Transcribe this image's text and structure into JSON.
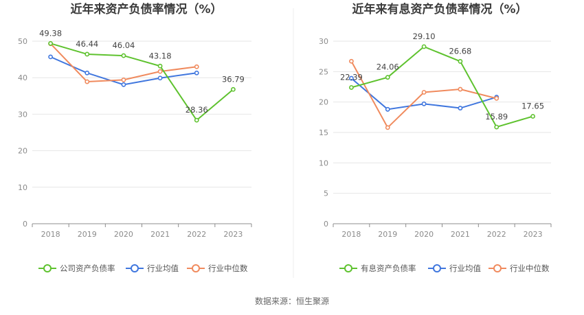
{
  "source": "数据来源：恒生聚源",
  "chart_data": [
    {
      "type": "line",
      "title": "近年来资产负债率情况（%）",
      "categories": [
        "2018",
        "2019",
        "2020",
        "2021",
        "2022",
        "2023"
      ],
      "ylim": [
        0,
        50
      ],
      "yticks": [
        0,
        10,
        20,
        30,
        40,
        50
      ],
      "grid": true,
      "legend_position": "bottom",
      "series": [
        {
          "name": "公司资产负债率",
          "color": "#5ec22e",
          "values": [
            49.38,
            46.44,
            46.04,
            43.18,
            28.36,
            36.79
          ],
          "labels": [
            "49.38",
            "46.44",
            "46.04",
            "43.18",
            "28.36",
            "36.79"
          ]
        },
        {
          "name": "行业均值",
          "color": "#3f76de",
          "values": [
            45.7,
            41.3,
            38.1,
            39.9,
            41.3,
            null
          ]
        },
        {
          "name": "行业中位数",
          "color": "#f08a5d",
          "values": [
            49.3,
            38.9,
            39.4,
            41.7,
            43.0,
            null
          ]
        }
      ]
    },
    {
      "type": "line",
      "title": "近年来有息资产负债率情况（%）",
      "categories": [
        "2018",
        "2019",
        "2020",
        "2021",
        "2022",
        "2023"
      ],
      "ylim": [
        0,
        30
      ],
      "yticks": [
        0,
        5,
        10,
        15,
        20,
        25,
        30
      ],
      "grid": true,
      "legend_position": "bottom",
      "series": [
        {
          "name": "有息资产负债率",
          "color": "#5ec22e",
          "values": [
            22.39,
            24.06,
            29.1,
            26.68,
            15.89,
            17.65
          ],
          "labels": [
            "22.39",
            "24.06",
            "29.10",
            "26.68",
            "15.89",
            "17.65"
          ]
        },
        {
          "name": "行业均值",
          "color": "#3f76de",
          "values": [
            23.9,
            18.8,
            19.7,
            19.0,
            20.8,
            null
          ]
        },
        {
          "name": "行业中位数",
          "color": "#f08a5d",
          "values": [
            26.7,
            15.8,
            21.6,
            22.1,
            20.6,
            null
          ]
        }
      ]
    }
  ]
}
